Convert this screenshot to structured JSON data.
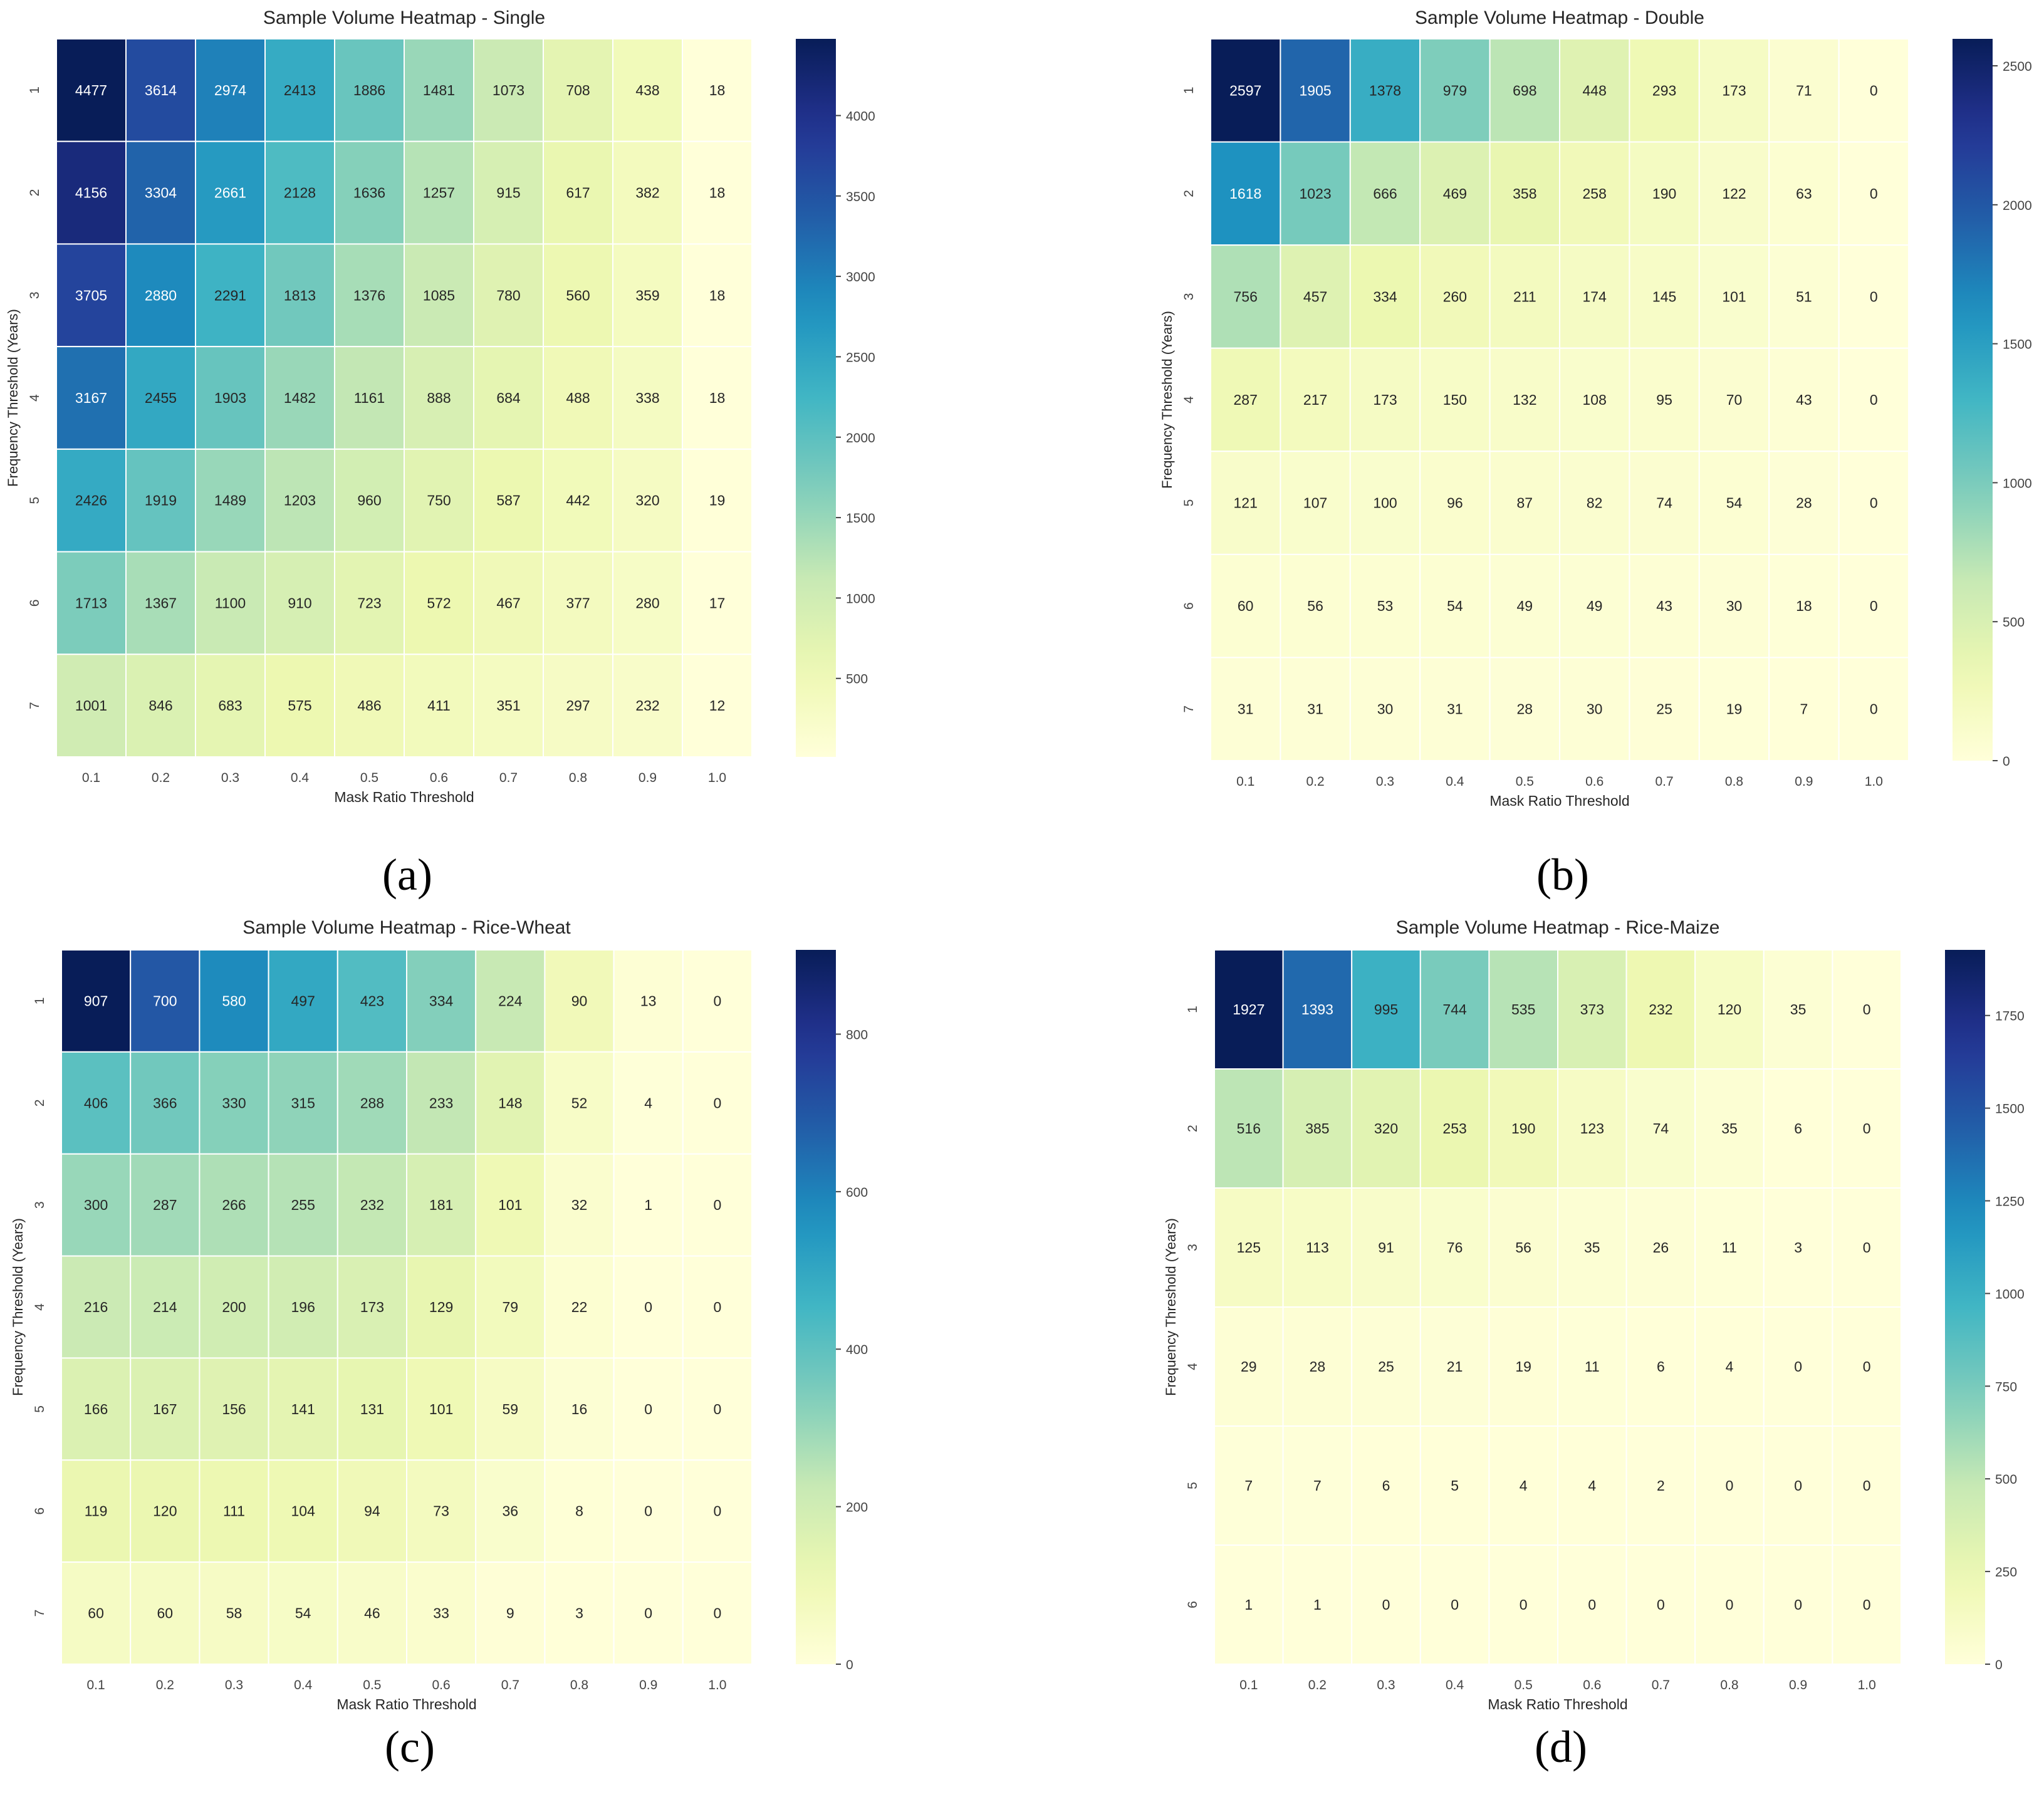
{
  "chart_data": [
    {
      "type": "heatmap",
      "panel_label": "(a)",
      "title": "Sample Volume Heatmap - Single",
      "xlabel": "Mask Ratio Threshold",
      "ylabel": "Frequency Threshold (Years)",
      "x_categories": [
        "0.1",
        "0.2",
        "0.3",
        "0.4",
        "0.5",
        "0.6",
        "0.7",
        "0.8",
        "0.9",
        "1.0"
      ],
      "y_categories": [
        "1",
        "2",
        "3",
        "4",
        "5",
        "6",
        "7"
      ],
      "values": [
        [
          4477,
          3614,
          2974,
          2413,
          1886,
          1481,
          1073,
          708,
          438,
          18
        ],
        [
          4156,
          3304,
          2661,
          2128,
          1636,
          1257,
          915,
          617,
          382,
          18
        ],
        [
          3705,
          2880,
          2291,
          1813,
          1376,
          1085,
          780,
          560,
          359,
          18
        ],
        [
          3167,
          2455,
          1903,
          1482,
          1161,
          888,
          684,
          488,
          338,
          18
        ],
        [
          2426,
          1919,
          1489,
          1203,
          960,
          750,
          587,
          442,
          320,
          19
        ],
        [
          1713,
          1367,
          1100,
          910,
          723,
          572,
          467,
          377,
          280,
          17
        ],
        [
          1001,
          846,
          683,
          575,
          486,
          411,
          351,
          297,
          232,
          12
        ]
      ],
      "colormap": "YlGnBu",
      "colorbar": {
        "min": 12,
        "max": 4477,
        "ticks": [
          500,
          1000,
          1500,
          2000,
          2500,
          3000,
          3500,
          4000
        ]
      }
    },
    {
      "type": "heatmap",
      "panel_label": "(b)",
      "title": "Sample Volume Heatmap - Double",
      "xlabel": "Mask Ratio Threshold",
      "ylabel": "Frequency Threshold (Years)",
      "x_categories": [
        "0.1",
        "0.2",
        "0.3",
        "0.4",
        "0.5",
        "0.6",
        "0.7",
        "0.8",
        "0.9",
        "1.0"
      ],
      "y_categories": [
        "1",
        "2",
        "3",
        "4",
        "5",
        "6",
        "7"
      ],
      "values": [
        [
          2597,
          1905,
          1378,
          979,
          698,
          448,
          293,
          173,
          71,
          0
        ],
        [
          1618,
          1023,
          666,
          469,
          358,
          258,
          190,
          122,
          63,
          0
        ],
        [
          756,
          457,
          334,
          260,
          211,
          174,
          145,
          101,
          51,
          0
        ],
        [
          287,
          217,
          173,
          150,
          132,
          108,
          95,
          70,
          43,
          0
        ],
        [
          121,
          107,
          100,
          96,
          87,
          82,
          74,
          54,
          28,
          0
        ],
        [
          60,
          56,
          53,
          54,
          49,
          49,
          43,
          30,
          18,
          0
        ],
        [
          31,
          31,
          30,
          31,
          28,
          30,
          25,
          19,
          7,
          0
        ]
      ],
      "colormap": "YlGnBu",
      "colorbar": {
        "min": 0,
        "max": 2597,
        "ticks": [
          0,
          500,
          1000,
          1500,
          2000,
          2500
        ]
      }
    },
    {
      "type": "heatmap",
      "panel_label": "(c)",
      "title": "Sample Volume Heatmap - Rice-Wheat",
      "xlabel": "Mask Ratio Threshold",
      "ylabel": "Frequency Threshold (Years)",
      "x_categories": [
        "0.1",
        "0.2",
        "0.3",
        "0.4",
        "0.5",
        "0.6",
        "0.7",
        "0.8",
        "0.9",
        "1.0"
      ],
      "y_categories": [
        "1",
        "2",
        "3",
        "4",
        "5",
        "6",
        "7"
      ],
      "values": [
        [
          907,
          700,
          580,
          497,
          423,
          334,
          224,
          90,
          13,
          0
        ],
        [
          406,
          366,
          330,
          315,
          288,
          233,
          148,
          52,
          4,
          0
        ],
        [
          300,
          287,
          266,
          255,
          232,
          181,
          101,
          32,
          1,
          0
        ],
        [
          216,
          214,
          200,
          196,
          173,
          129,
          79,
          22,
          0,
          0
        ],
        [
          166,
          167,
          156,
          141,
          131,
          101,
          59,
          16,
          0,
          0
        ],
        [
          119,
          120,
          111,
          104,
          94,
          73,
          36,
          8,
          0,
          0
        ],
        [
          60,
          60,
          58,
          54,
          46,
          33,
          9,
          3,
          0,
          0
        ]
      ],
      "colormap": "YlGnBu",
      "colorbar": {
        "min": 0,
        "max": 907,
        "ticks": [
          0,
          200,
          400,
          600,
          800
        ]
      }
    },
    {
      "type": "heatmap",
      "panel_label": "(d)",
      "title": "Sample Volume Heatmap - Rice-Maize",
      "xlabel": "Mask Ratio Threshold",
      "ylabel": "Frequency Threshold (Years)",
      "x_categories": [
        "0.1",
        "0.2",
        "0.3",
        "0.4",
        "0.5",
        "0.6",
        "0.7",
        "0.8",
        "0.9",
        "1.0"
      ],
      "y_categories": [
        "1",
        "2",
        "3",
        "4",
        "5",
        "6"
      ],
      "values": [
        [
          1927,
          1393,
          995,
          744,
          535,
          373,
          232,
          120,
          35,
          0
        ],
        [
          516,
          385,
          320,
          253,
          190,
          123,
          74,
          35,
          6,
          0
        ],
        [
          125,
          113,
          91,
          76,
          56,
          35,
          26,
          11,
          3,
          0
        ],
        [
          29,
          28,
          25,
          21,
          19,
          11,
          6,
          4,
          0,
          0
        ],
        [
          7,
          7,
          6,
          5,
          4,
          4,
          2,
          0,
          0,
          0
        ],
        [
          1,
          1,
          0,
          0,
          0,
          0,
          0,
          0,
          0,
          0
        ]
      ],
      "colormap": "YlGnBu",
      "colorbar": {
        "min": 0,
        "max": 1927,
        "ticks": [
          0,
          250,
          500,
          750,
          1000,
          1250,
          1500,
          1750
        ]
      }
    }
  ]
}
